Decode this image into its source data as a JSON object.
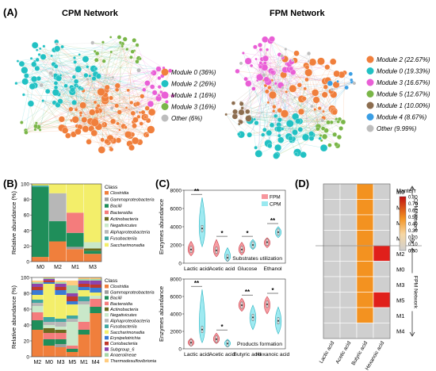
{
  "panel_labels": {
    "a": "(A)",
    "b": "(B)",
    "c": "(C)",
    "d": "(D)"
  },
  "networks": [
    {
      "title": "CPM Network",
      "legend": [
        {
          "label": "Module 0 (36%)",
          "color": "#f07f3c"
        },
        {
          "label": "Module 2 (26%)",
          "color": "#22c1c3"
        },
        {
          "label": "Module 1 (16%)",
          "color": "#e95fd6"
        },
        {
          "label": "Module 3 (16%)",
          "color": "#7ab648"
        },
        {
          "label": "Other (6%)",
          "color": "#bdbdbd"
        }
      ]
    },
    {
      "title": "FPM Network",
      "legend": [
        {
          "label": "Module 2 (22.67%)",
          "color": "#f07f3c"
        },
        {
          "label": "Module 0 (19.33%)",
          "color": "#22c1c3"
        },
        {
          "label": "Module 3 (16.67%)",
          "color": "#e95fd6"
        },
        {
          "label": "Module 5 (12.67%)",
          "color": "#7ab648"
        },
        {
          "label": "Module 1 (10.00%)",
          "color": "#8c6d4f"
        },
        {
          "label": "Module 4 (8.67%)",
          "color": "#3a9ee4"
        },
        {
          "label": "Other (9.99%)",
          "color": "#bdbdbd"
        }
      ]
    }
  ],
  "chart_data": [
    {
      "type": "stacked-bar",
      "panel": "B-top",
      "ylabel": "Relative abundance (%)",
      "ylim": [
        0,
        100
      ],
      "yticks": [
        "0",
        "20",
        "40",
        "60",
        "80",
        "100"
      ],
      "categories": [
        "M0",
        "M2",
        "M1",
        "M3"
      ],
      "legend_title": "Class",
      "series": [
        {
          "name": "Clostridia",
          "color": "#f07f3c",
          "values": [
            6,
            26,
            16,
            10
          ]
        },
        {
          "name": "Gammaproteobacteria",
          "color": "#9e9e9e",
          "values": [
            0,
            0,
            3,
            0
          ]
        },
        {
          "name": "Bacilli",
          "color": "#1f8e5a",
          "values": [
            90,
            26,
            18,
            4
          ]
        },
        {
          "name": "Bacteroidia",
          "color": "#f47c7c",
          "values": [
            0,
            0,
            26,
            0
          ]
        },
        {
          "name": "Actinobacteria",
          "color": "#6b6b1f",
          "values": [
            0,
            0,
            0,
            3
          ]
        },
        {
          "name": "Negativicutes",
          "color": "#c9e8c9",
          "values": [
            0,
            0,
            0,
            8
          ]
        },
        {
          "name": "Alphaproteobacteria",
          "color": "#b7b7b7",
          "values": [
            0,
            36,
            0,
            0
          ]
        },
        {
          "name": "Fusobacteriia",
          "color": "#3fa7a0",
          "values": [
            2,
            0,
            0,
            0
          ]
        },
        {
          "name": "Saccharimonadia",
          "color": "#f3ee6a",
          "values": [
            2,
            12,
            37,
            75
          ]
        }
      ]
    },
    {
      "type": "stacked-bar",
      "panel": "B-bottom",
      "ylabel": "Relative abundance (%)",
      "ylim": [
        0,
        100
      ],
      "yticks": [
        "0",
        "20",
        "40",
        "60",
        "80",
        "100"
      ],
      "categories": [
        "M2",
        "M0",
        "M3",
        "M5",
        "M1",
        "M4"
      ],
      "legend_title": "Class",
      "series": [
        {
          "name": "Clostridia",
          "color": "#f07f3c",
          "values": [
            34,
            14,
            12,
            6,
            28,
            55
          ]
        },
        {
          "name": "Gammaproteobacteria",
          "color": "#9e9e9e",
          "values": [
            0,
            0,
            4,
            0,
            0,
            0
          ]
        },
        {
          "name": "Bacilli",
          "color": "#1f8e5a",
          "values": [
            12,
            8,
            6,
            4,
            6,
            8
          ]
        },
        {
          "name": "Bacteroidia",
          "color": "#f47c7c",
          "values": [
            10,
            8,
            8,
            4,
            10,
            10
          ]
        },
        {
          "name": "Actinobacteria",
          "color": "#6b6b1f",
          "values": [
            0,
            6,
            4,
            0,
            0,
            0
          ]
        },
        {
          "name": "Negativicutes",
          "color": "#c9e8c9",
          "values": [
            8,
            4,
            4,
            30,
            22,
            4
          ]
        },
        {
          "name": "Alphaproteobacteria",
          "color": "#b7b7b7",
          "values": [
            4,
            4,
            6,
            4,
            4,
            0
          ]
        },
        {
          "name": "Fusobacteriia",
          "color": "#3fa7a0",
          "values": [
            4,
            6,
            4,
            4,
            6,
            0
          ]
        },
        {
          "name": "Saccharimonadia",
          "color": "#f3ee6a",
          "values": [
            6,
            42,
            30,
            14,
            8,
            4
          ]
        },
        {
          "name": "Erysipelotrichia",
          "color": "#3a7bd5",
          "values": [
            6,
            2,
            6,
            4,
            4,
            6
          ]
        },
        {
          "name": "Coriobacteriia",
          "color": "#c0392b",
          "values": [
            4,
            2,
            4,
            6,
            4,
            4
          ]
        },
        {
          "name": "Subgroup_6",
          "color": "#8e44ad",
          "values": [
            4,
            2,
            4,
            4,
            4,
            5
          ]
        },
        {
          "name": "Anaerolineae",
          "color": "#a5d6a7",
          "values": [
            2,
            1,
            2,
            10,
            2,
            2
          ]
        },
        {
          "name": "Thermodesulfovibrionia",
          "color": "#ffcc80",
          "values": [
            2,
            1,
            2,
            6,
            2,
            2
          ]
        }
      ]
    },
    {
      "type": "violin",
      "panel": "C-top",
      "ylabel": "Enzymes abundance",
      "ylim": [
        0,
        8000
      ],
      "yticks": [
        "0",
        "2000",
        "4000",
        "6000",
        "8000"
      ],
      "categories": [
        "Lactic acid",
        "Acetic acid",
        "Glucose",
        "Ethanol"
      ],
      "subtitle": "Substrates utilization",
      "legend": [
        {
          "name": "FPM",
          "color": "#f47c84"
        },
        {
          "name": "CPM",
          "color": "#7fe3ec"
        }
      ],
      "significance": [
        "**",
        "*",
        "*",
        "**"
      ],
      "series": [
        {
          "name": "FPM",
          "median": [
            1500,
            1400,
            1500,
            2300
          ],
          "max": [
            2400,
            2600,
            2300,
            2800
          ],
          "min": [
            800,
            700,
            900,
            1700
          ]
        },
        {
          "name": "CPM",
          "median": [
            3800,
            600,
            2000,
            3400
          ],
          "max": [
            7200,
            1700,
            2600,
            4000
          ],
          "min": [
            1800,
            200,
            1500,
            2800
          ]
        }
      ]
    },
    {
      "type": "violin",
      "panel": "C-bottom",
      "ylabel": "Enzymes abundance",
      "ylim": [
        0,
        8000
      ],
      "yticks": [
        "0",
        "2000",
        "4000",
        "6000",
        "8000"
      ],
      "categories": [
        "Lactic acid",
        "Acetic acid",
        "Butyric acid",
        "Hexanoic acid"
      ],
      "subtitle": "Products formation",
      "significance": [
        "**",
        "*",
        "**",
        "*"
      ],
      "series": [
        {
          "name": "FPM",
          "median": [
            700,
            1100,
            5000,
            5100
          ],
          "max": [
            1200,
            1800,
            5800,
            6000
          ],
          "min": [
            300,
            600,
            4300,
            4000
          ]
        },
        {
          "name": "CPM",
          "median": [
            2200,
            600,
            3600,
            3200
          ],
          "max": [
            6800,
            1100,
            5000,
            4800
          ],
          "min": [
            700,
            200,
            2200,
            1700
          ]
        }
      ]
    },
    {
      "type": "heatmap",
      "panel": "D",
      "rows": [
        "M0",
        "M2",
        "M1",
        "M3",
        "M2",
        "M0",
        "M3",
        "M5",
        "M1",
        "M4"
      ],
      "columns": [
        "Lactic acid",
        "Acetic acid",
        "Butyric acid",
        "Hexanoic acid"
      ],
      "values": [
        [
          0,
          0,
          0.5,
          0
        ],
        [
          0,
          0,
          0.5,
          0
        ],
        [
          0,
          0,
          0.5,
          0
        ],
        [
          0,
          0,
          0.5,
          0
        ],
        [
          0,
          0,
          0.5,
          0.8
        ],
        [
          0,
          0,
          0.5,
          0
        ],
        [
          0,
          0,
          0.5,
          0
        ],
        [
          0,
          0,
          0.5,
          0.8
        ],
        [
          0,
          0,
          0.5,
          0
        ],
        [
          0,
          0,
          0,
          0
        ]
      ],
      "group_labels": [
        "CPM Network",
        "FPM Network"
      ],
      "colorbar_title": "Mantel'r",
      "colorbar_ticks": [
        "0.80",
        "0.70",
        "0.60",
        "0.50",
        "0.40",
        "0.30",
        "0.20",
        "0.10",
        "0.00"
      ]
    }
  ]
}
